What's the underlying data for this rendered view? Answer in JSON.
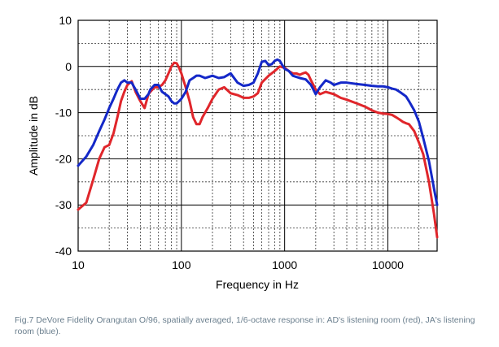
{
  "chart_data": {
    "type": "line",
    "xlabel": "Frequency in Hz",
    "ylabel": "Amplitude in dB",
    "xscale": "log",
    "xlim": [
      10,
      30000
    ],
    "ylim": [
      -40,
      10
    ],
    "grid": true,
    "x_tick_labels": [
      "10",
      "100",
      "1000",
      "10000"
    ],
    "x_ticks": [
      10,
      100,
      1000,
      10000
    ],
    "y_tick_labels": [
      "10",
      "0",
      "-10",
      "-20",
      "-30",
      "-40"
    ],
    "y_ticks": [
      10,
      0,
      -10,
      -20,
      -30,
      -40
    ],
    "series": [
      {
        "color": "#e0262b",
        "x": [
          10,
          12,
          14,
          16,
          18,
          20,
          22,
          24,
          26,
          28,
          30,
          33,
          36,
          40,
          44,
          48,
          50,
          55,
          60,
          65,
          70,
          75,
          80,
          85,
          90,
          95,
          100,
          110,
          120,
          130,
          140,
          150,
          160,
          180,
          200,
          230,
          260,
          300,
          350,
          400,
          450,
          500,
          550,
          600,
          700,
          800,
          900,
          1000,
          1100,
          1200,
          1300,
          1400,
          1500,
          1600,
          1700,
          1800,
          2000,
          2200,
          2500,
          3000,
          3500,
          4000,
          5000,
          6000,
          7000,
          8000,
          9000,
          10000,
          11000,
          12000,
          13000,
          14000,
          15000,
          16000,
          18000,
          20000,
          22000,
          25000,
          28000,
          30000
        ],
        "y": [
          -31,
          -29.5,
          -24.5,
          -20,
          -17.5,
          -17,
          -14.5,
          -11,
          -7.5,
          -5.5,
          -4,
          -3.2,
          -5.5,
          -7.5,
          -9,
          -6,
          -5.5,
          -4.5,
          -4.5,
          -4,
          -3,
          -1.5,
          0,
          0.8,
          0.7,
          -0.3,
          -1.5,
          -4.5,
          -7.5,
          -11,
          -12.5,
          -12.5,
          -11,
          -9,
          -7,
          -5,
          -4.5,
          -5.8,
          -6.2,
          -6.8,
          -6.8,
          -6.5,
          -5.8,
          -3.5,
          -2,
          -1,
          0,
          -0.3,
          -1,
          -1.5,
          -1.5,
          -1.8,
          -1.5,
          -1.3,
          -1.8,
          -3,
          -5,
          -6,
          -5.5,
          -6,
          -6.8,
          -7.2,
          -8,
          -8.7,
          -9.5,
          -10,
          -10.2,
          -10.3,
          -10.5,
          -11,
          -11.5,
          -12,
          -12.3,
          -12.5,
          -14,
          -16.5,
          -19,
          -25,
          -32,
          -37
        ]
      },
      {
        "color": "#1428c8",
        "x": [
          10,
          12,
          14,
          16,
          18,
          20,
          22,
          24,
          26,
          28,
          30,
          33,
          36,
          40,
          44,
          48,
          50,
          55,
          60,
          65,
          70,
          75,
          80,
          85,
          90,
          95,
          100,
          110,
          120,
          130,
          140,
          150,
          170,
          200,
          230,
          260,
          300,
          350,
          400,
          450,
          500,
          550,
          600,
          650,
          700,
          750,
          800,
          850,
          900,
          950,
          1000,
          1100,
          1200,
          1400,
          1600,
          1800,
          2000,
          2200,
          2500,
          2800,
          3000,
          3500,
          4000,
          5000,
          6000,
          7000,
          8000,
          9000,
          10000,
          11000,
          12000,
          13000,
          14000,
          15000,
          16000,
          18000,
          20000,
          22000,
          25000,
          28000,
          30000
        ],
        "y": [
          -21.5,
          -19.5,
          -17,
          -14,
          -11.5,
          -9,
          -7,
          -5,
          -3.5,
          -3,
          -3.5,
          -3.5,
          -5,
          -7,
          -7,
          -6,
          -5,
          -4,
          -4,
          -5.5,
          -6,
          -6.5,
          -7.5,
          -8,
          -8,
          -7.5,
          -7,
          -5.5,
          -3,
          -2.5,
          -2,
          -2,
          -2.5,
          -2,
          -2.5,
          -2.3,
          -1.5,
          -3.5,
          -4.2,
          -4,
          -3.5,
          -1.5,
          1,
          1.2,
          0.3,
          0.5,
          1.2,
          1.5,
          1.2,
          0.3,
          -0.5,
          -1,
          -2,
          -2.5,
          -2.8,
          -4,
          -6,
          -4.5,
          -3,
          -3.5,
          -4,
          -3.5,
          -3.5,
          -3.8,
          -4,
          -4.2,
          -4.3,
          -4.3,
          -4.5,
          -4.8,
          -5,
          -5.5,
          -6,
          -6.5,
          -7.5,
          -9.5,
          -12,
          -15.5,
          -20.5,
          -26.5,
          -30
        ]
      }
    ]
  },
  "caption": "Fig.7 DeVore Fidelity Orangutan O/96, spatially averaged, 1/6-octave response in: AD's listening room (red), JA's listening room (blue)."
}
